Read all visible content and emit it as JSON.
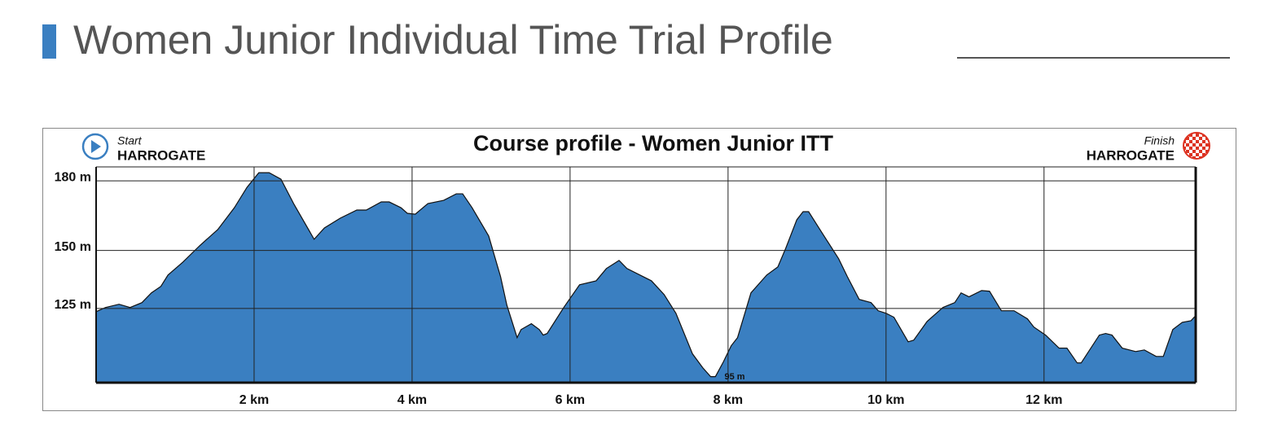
{
  "header": {
    "title": "Women Junior Individual Time Trial Profile"
  },
  "chart_data": {
    "type": "area",
    "title": "Course profile - Women Junior ITT",
    "start_label": "Start",
    "start_place": "HARROGATE",
    "finish_label": "Finish",
    "finish_place": "HARROGATE",
    "annotations": [
      "95 m"
    ],
    "x": [
      0,
      0.12,
      0.29,
      0.43,
      0.58,
      0.7,
      0.82,
      0.91,
      1.1,
      1.31,
      1.54,
      1.75,
      1.91,
      2.06,
      2.19,
      2.34,
      2.5,
      2.76,
      2.89,
      3.09,
      3.3,
      3.42,
      3.61,
      3.71,
      3.86,
      3.94,
      4.04,
      4.2,
      4.4,
      4.56,
      4.64,
      4.76,
      4.97,
      5.12,
      5.2,
      5.33,
      5.38,
      5.51,
      5.61,
      5.66,
      5.71,
      5.92,
      6.12,
      6.33,
      6.46,
      6.62,
      6.72,
      7.03,
      7.19,
      7.34,
      7.55,
      7.68,
      7.78,
      7.84,
      7.94,
      8.04,
      8.12,
      8.29,
      8.49,
      8.63,
      8.73,
      8.87,
      8.95,
      9.02,
      9.15,
      9.4,
      9.51,
      9.66,
      9.81,
      9.9,
      10.0,
      10.1,
      10.28,
      10.35,
      10.52,
      10.72,
      10.87,
      10.95,
      11.05,
      11.21,
      11.31,
      11.46,
      11.62,
      11.79,
      11.87,
      12.02,
      12.19,
      12.29,
      12.42,
      12.47,
      12.7,
      12.78,
      12.86,
      12.99,
      13.16,
      13.27,
      13.42,
      13.51,
      13.63,
      13.75,
      13.86,
      13.92
    ],
    "series": [
      {
        "color": "#3a7fc1",
        "values": [
          123.6,
          125.4,
          126.8,
          125.4,
          127.5,
          131.7,
          134.5,
          139.4,
          145,
          152,
          159,
          168.4,
          177.2,
          183.5,
          183.5,
          180.7,
          170.2,
          154.8,
          159.7,
          163.9,
          167.4,
          167.4,
          170.9,
          170.9,
          168.4,
          166,
          165.6,
          170.2,
          171.6,
          174.4,
          174.4,
          168.4,
          156.2,
          138.7,
          126.4,
          112.4,
          115.9,
          118.4,
          115.9,
          113.5,
          114.2,
          125.4,
          135.2,
          136.9,
          142.2,
          145.7,
          142.2,
          136.9,
          131,
          122.9,
          105.4,
          99.4,
          95.6,
          95.6,
          101.9,
          108.9,
          112.4,
          131.7,
          139.4,
          142.9,
          150.9,
          163.2,
          166.7,
          166.7,
          159.7,
          146.4,
          138.7,
          128.9,
          127.5,
          124,
          122.9,
          121.2,
          110.6,
          111.3,
          119.4,
          125.4,
          127.5,
          131.7,
          130,
          132.7,
          132.4,
          124,
          124,
          120.5,
          117,
          113.5,
          107.9,
          107.9,
          101.5,
          101.5,
          113.5,
          114.2,
          113.5,
          107.9,
          106.4,
          107.1,
          104.3,
          104.3,
          115.9,
          119,
          119.7,
          121.9
        ]
      }
    ],
    "xlim": [
      0,
      13.92
    ],
    "ylim": [
      93,
      186
    ],
    "xticks": [
      {
        "value": 2,
        "label": "2 km"
      },
      {
        "value": 4,
        "label": "4 km"
      },
      {
        "value": 6,
        "label": "6 km"
      },
      {
        "value": 8,
        "label": "8 km"
      },
      {
        "value": 10,
        "label": "10 km"
      },
      {
        "value": 12,
        "label": "12 km"
      }
    ],
    "yticks": [
      {
        "value": 125,
        "label": "125 m"
      },
      {
        "value": 150,
        "label": "150 m"
      },
      {
        "value": 180,
        "label": "180 m"
      }
    ],
    "grid": true
  }
}
